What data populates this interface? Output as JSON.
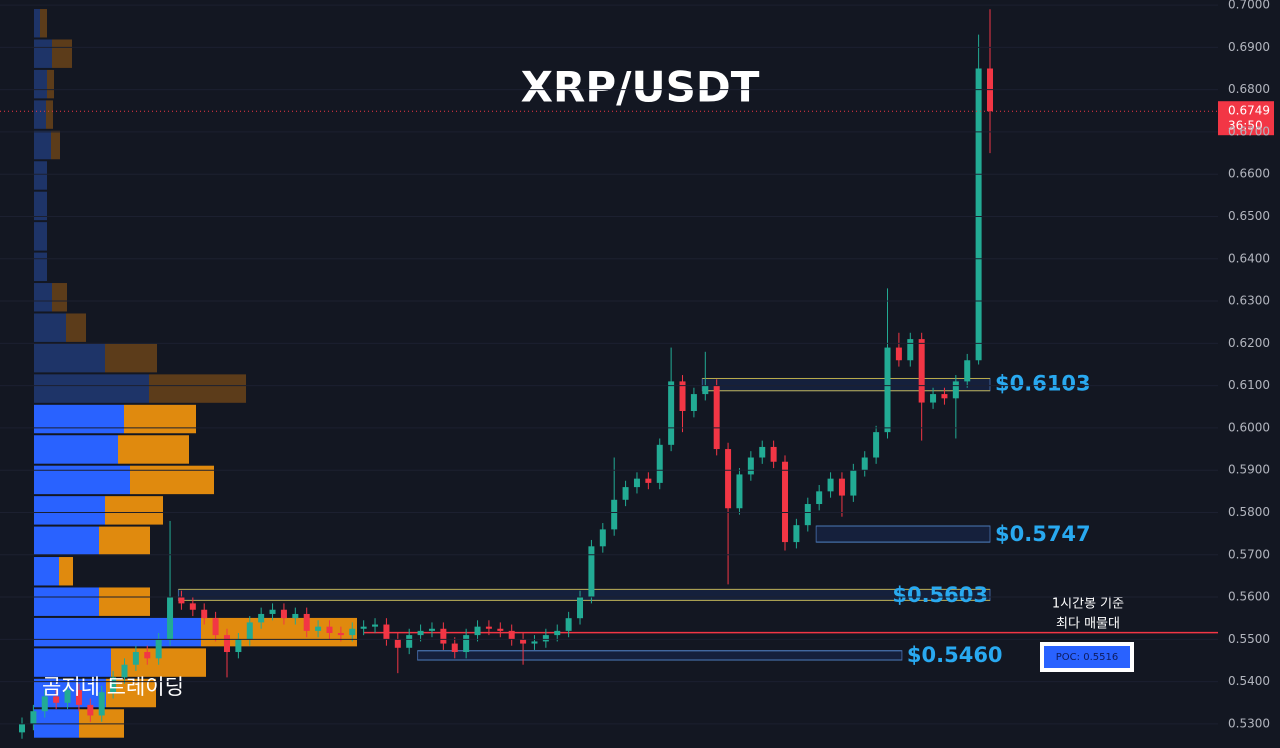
{
  "chart_data": {
    "type": "candlestick",
    "title": "XRP/USDT",
    "watermark": "곰지네 트레이딩",
    "ylim": [
      0.5243,
      0.7012
    ],
    "yticks": [
      {
        "value": 0.53,
        "label": "0.5300"
      },
      {
        "value": 0.54,
        "label": "0.5400"
      },
      {
        "value": 0.55,
        "label": "0.5500"
      },
      {
        "value": 0.56,
        "label": "0.5600"
      },
      {
        "value": 0.57,
        "label": "0.5700"
      },
      {
        "value": 0.58,
        "label": "0.5800"
      },
      {
        "value": 0.59,
        "label": "0.5900"
      },
      {
        "value": 0.6,
        "label": "0.6000"
      },
      {
        "value": 0.61,
        "label": "0.6100"
      },
      {
        "value": 0.62,
        "label": "0.6200"
      },
      {
        "value": 0.63,
        "label": "0.6300"
      },
      {
        "value": 0.64,
        "label": "0.6400"
      },
      {
        "value": 0.65,
        "label": "0.6500"
      },
      {
        "value": 0.66,
        "label": "0.6600"
      },
      {
        "value": 0.67,
        "label": "0.6700"
      },
      {
        "value": 0.68,
        "label": "0.6800"
      },
      {
        "value": 0.69,
        "label": "0.6900"
      },
      {
        "value": 0.7,
        "label": "0.7000"
      }
    ],
    "up_color": "#22ab94",
    "down_color": "#f23645",
    "open": [
      0.528,
      0.53,
      0.533,
      0.5365,
      0.535,
      0.538,
      0.5345,
      0.532,
      0.5375,
      0.541,
      0.544,
      0.547,
      0.5455,
      0.55,
      0.56,
      0.5585,
      0.557,
      0.555,
      0.551,
      0.547,
      0.55,
      0.554,
      0.556,
      0.557,
      0.555,
      0.556,
      0.552,
      0.553,
      0.5515,
      0.551,
      0.5525,
      0.553,
      0.5535,
      0.55,
      0.548,
      0.551,
      0.552,
      0.5525,
      0.549,
      0.547,
      0.551,
      0.553,
      0.5525,
      0.552,
      0.55,
      0.549,
      0.5495,
      0.551,
      0.552,
      0.555,
      0.56,
      0.572,
      0.576,
      0.583,
      0.586,
      0.588,
      0.587,
      0.596,
      0.611,
      0.604,
      0.608,
      0.61,
      0.595,
      0.581,
      0.589,
      0.593,
      0.5955,
      0.592,
      0.573,
      0.577,
      0.582,
      0.585,
      0.588,
      0.584,
      0.59,
      0.593,
      0.599,
      0.619,
      0.616,
      0.621,
      0.606,
      0.608,
      0.607,
      0.611,
      0.616,
      0.685
    ],
    "high": [
      0.5315,
      0.5345,
      0.538,
      0.538,
      0.5395,
      0.5395,
      0.536,
      0.539,
      0.5425,
      0.5455,
      0.5485,
      0.5485,
      0.5515,
      0.578,
      0.5615,
      0.56,
      0.5585,
      0.5565,
      0.5525,
      0.5515,
      0.5555,
      0.5575,
      0.5585,
      0.5585,
      0.5575,
      0.5575,
      0.5545,
      0.5545,
      0.553,
      0.554,
      0.5545,
      0.555,
      0.555,
      0.5515,
      0.5525,
      0.5535,
      0.554,
      0.554,
      0.5505,
      0.5525,
      0.5545,
      0.5545,
      0.554,
      0.5535,
      0.5515,
      0.551,
      0.5525,
      0.5535,
      0.5565,
      0.5615,
      0.5735,
      0.5775,
      0.593,
      0.5875,
      0.5895,
      0.5895,
      0.5975,
      0.619,
      0.6125,
      0.6095,
      0.618,
      0.6115,
      0.5965,
      0.5905,
      0.5945,
      0.597,
      0.597,
      0.5935,
      0.5785,
      0.5835,
      0.5865,
      0.5895,
      0.5895,
      0.5915,
      0.5945,
      0.6005,
      0.633,
      0.6225,
      0.6225,
      0.6225,
      0.6095,
      0.6095,
      0.6125,
      0.6175,
      0.693,
      0.699
    ],
    "low": [
      0.5265,
      0.5285,
      0.5315,
      0.5335,
      0.5335,
      0.533,
      0.5305,
      0.5305,
      0.536,
      0.5395,
      0.5425,
      0.544,
      0.544,
      0.5485,
      0.557,
      0.5555,
      0.5535,
      0.5495,
      0.541,
      0.5455,
      0.5485,
      0.5525,
      0.5545,
      0.5535,
      0.5535,
      0.5505,
      0.5505,
      0.55,
      0.5495,
      0.5495,
      0.551,
      0.5515,
      0.5485,
      0.542,
      0.5465,
      0.5495,
      0.5505,
      0.5475,
      0.5455,
      0.5455,
      0.5495,
      0.551,
      0.5505,
      0.5485,
      0.544,
      0.5475,
      0.548,
      0.5495,
      0.5505,
      0.5535,
      0.5585,
      0.5705,
      0.5745,
      0.5815,
      0.5845,
      0.5855,
      0.5855,
      0.5945,
      0.599,
      0.6025,
      0.6065,
      0.5935,
      0.563,
      0.5795,
      0.5875,
      0.5915,
      0.5905,
      0.571,
      0.5715,
      0.5755,
      0.5805,
      0.5835,
      0.579,
      0.5825,
      0.5885,
      0.5915,
      0.5975,
      0.6145,
      0.6145,
      0.597,
      0.6045,
      0.6055,
      0.5975,
      0.6095,
      0.615,
      0.665
    ],
    "close": [
      0.53,
      0.533,
      0.5365,
      0.535,
      0.538,
      0.5345,
      0.532,
      0.5375,
      0.541,
      0.544,
      0.547,
      0.5455,
      0.55,
      0.56,
      0.5585,
      0.557,
      0.555,
      0.551,
      0.547,
      0.55,
      0.554,
      0.556,
      0.557,
      0.555,
      0.556,
      0.552,
      0.553,
      0.5515,
      0.551,
      0.5525,
      0.553,
      0.5535,
      0.55,
      0.548,
      0.551,
      0.552,
      0.5525,
      0.549,
      0.547,
      0.551,
      0.553,
      0.5525,
      0.552,
      0.55,
      0.549,
      0.5495,
      0.551,
      0.552,
      0.555,
      0.56,
      0.572,
      0.576,
      0.583,
      0.586,
      0.588,
      0.587,
      0.596,
      0.611,
      0.604,
      0.608,
      0.61,
      0.595,
      0.581,
      0.589,
      0.593,
      0.5955,
      0.592,
      0.573,
      0.577,
      0.582,
      0.585,
      0.588,
      0.584,
      0.59,
      0.593,
      0.599,
      0.619,
      0.616,
      0.621,
      0.606,
      0.608,
      0.607,
      0.611,
      0.616,
      0.685,
      0.6749
    ],
    "last_price": 0.6749,
    "countdown": "36:50",
    "zones": [
      {
        "value": 0.6103,
        "label": "$0.6103",
        "top": 0.6117,
        "bottom": 0.6088,
        "start": 60,
        "label_position": "right",
        "edge_color": "#b8a94a"
      },
      {
        "value": 0.5747,
        "label": "$0.5747",
        "top": 0.5768,
        "bottom": 0.573,
        "start": 70,
        "label_position": "right",
        "edge_color": "#4a78b5"
      },
      {
        "value": 0.5603,
        "label": "$0.5603",
        "top": 0.5618,
        "bottom": 0.5592,
        "start": 14,
        "label_position": "inside",
        "edge_color": "#b8a94a"
      },
      {
        "value": 0.546,
        "label": "$0.5460",
        "top": 0.5473,
        "bottom": 0.5451,
        "start": 35,
        "end": 77,
        "label_position": "right",
        "edge_color": "#4a78b5"
      }
    ],
    "poc": {
      "value": 0.5516,
      "label": "POC: 0.5516",
      "note": [
        "1시간봉 기준",
        "최다 매물대"
      ],
      "start": 30,
      "color": "#f23645"
    },
    "volume_profile": {
      "bins": [
        0.5265,
        0.5337,
        0.5409,
        0.5481,
        0.5553,
        0.5625,
        0.5697,
        0.5769,
        0.5841,
        0.5913,
        0.5985,
        0.6057,
        0.6129,
        0.6201,
        0.6273,
        0.6345,
        0.6417,
        0.6489,
        0.6561,
        0.6633,
        0.6705,
        0.6777,
        0.6849,
        0.6921,
        0.6993
      ],
      "buy": [
        45,
        72,
        77,
        167,
        65,
        25,
        65,
        71,
        96,
        84,
        90,
        115,
        71,
        32,
        18,
        13,
        13,
        13,
        13,
        17,
        12,
        13,
        18,
        6
      ],
      "sell": [
        45,
        50,
        95,
        156,
        51,
        14,
        51,
        58,
        84,
        71,
        72,
        97,
        52,
        20,
        15,
        0,
        0,
        0,
        0,
        9,
        7,
        7,
        20,
        7
      ],
      "value_area_high": 0.6057,
      "buy_color": "#2962ff",
      "sell_color": "#e08a0e",
      "outside_buy_color": "#1e3468",
      "outside_sell_color": "#5c3c1a"
    }
  }
}
